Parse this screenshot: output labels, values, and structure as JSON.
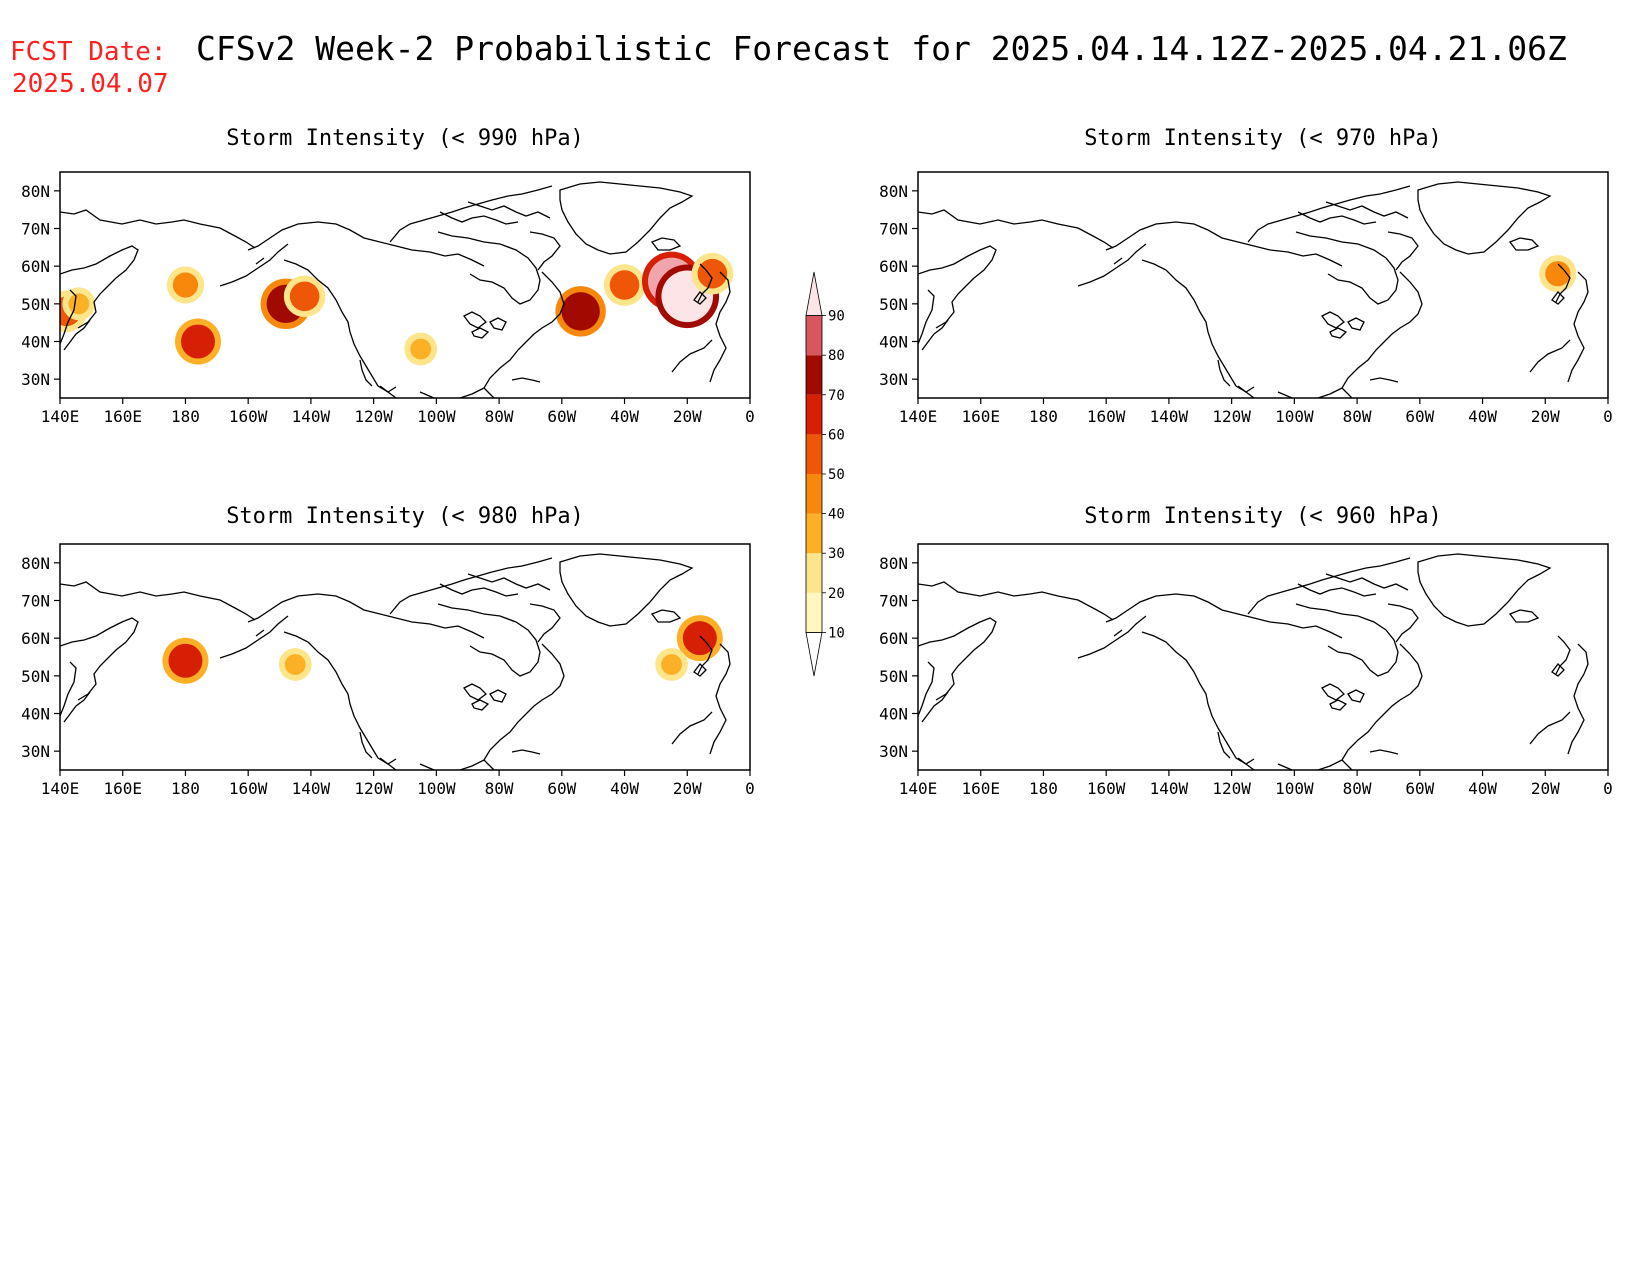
{
  "header": {
    "fcst_label": "FCST Date:",
    "fcst_date": "2025.04.07",
    "title": "CFSv2 Week-2 Probabilistic Forecast for 2025.04.14.12Z-2025.04.21.06Z"
  },
  "lat_labels": [
    "80N",
    "70N",
    "60N",
    "50N",
    "40N",
    "30N"
  ],
  "lon_labels": [
    "140E",
    "160E",
    "180",
    "160W",
    "140W",
    "120W",
    "100W",
    "80W",
    "60W",
    "40W",
    "20W",
    "0"
  ],
  "colorbar": {
    "labels": [
      "10",
      "20",
      "30",
      "40",
      "50",
      "60",
      "70",
      "80",
      "90"
    ],
    "colors": [
      "#fff7bf",
      "#fde58c",
      "#fbb026",
      "#f7880c",
      "#ee5608",
      "#d61f04",
      "#a10a00",
      "#d8565e",
      "#f0a5ad",
      "#fde4e6"
    ]
  },
  "panels": [
    {
      "id": "p990",
      "title": "Storm Intensity (< 990 hPa)"
    },
    {
      "id": "p970",
      "title": "Storm Intensity (< 970 hPa)"
    },
    {
      "id": "p980",
      "title": "Storm Intensity (< 980 hPa)"
    },
    {
      "id": "p960",
      "title": "Storm Intensity (< 960 hPa)"
    }
  ],
  "map_data": {
    "lon_range": "140E-0",
    "lat_range": "25N-85N",
    "probability_areas": {
      "p990": [
        {
          "lon": 142,
          "lat": 48,
          "prob": 40
        },
        {
          "lon": 146,
          "lat": 50,
          "prob": 20
        },
        {
          "lon": 180,
          "lat": 55,
          "prob": 30
        },
        {
          "lon": 184,
          "lat": 40,
          "prob": 50
        },
        {
          "lon": 212,
          "lat": 50,
          "prob": 60
        },
        {
          "lon": 218,
          "lat": 52,
          "prob": 40
        },
        {
          "lon": 255,
          "lat": 38,
          "prob": 20
        },
        {
          "lon": 306,
          "lat": 48,
          "prob": 60
        },
        {
          "lon": 320,
          "lat": 55,
          "prob": 40
        },
        {
          "lon": 335,
          "lat": 56,
          "prob": 80
        },
        {
          "lon": 340,
          "lat": 52,
          "prob": 90
        },
        {
          "lon": 348,
          "lat": 58,
          "prob": 40
        }
      ],
      "p970": [
        {
          "lon": 344,
          "lat": 58,
          "prob": 30
        }
      ],
      "p980": [
        {
          "lon": 180,
          "lat": 54,
          "prob": 50
        },
        {
          "lon": 215,
          "lat": 53,
          "prob": 20
        },
        {
          "lon": 344,
          "lat": 60,
          "prob": 50
        },
        {
          "lon": 335,
          "lat": 53,
          "prob": 20
        }
      ],
      "p960": []
    }
  }
}
